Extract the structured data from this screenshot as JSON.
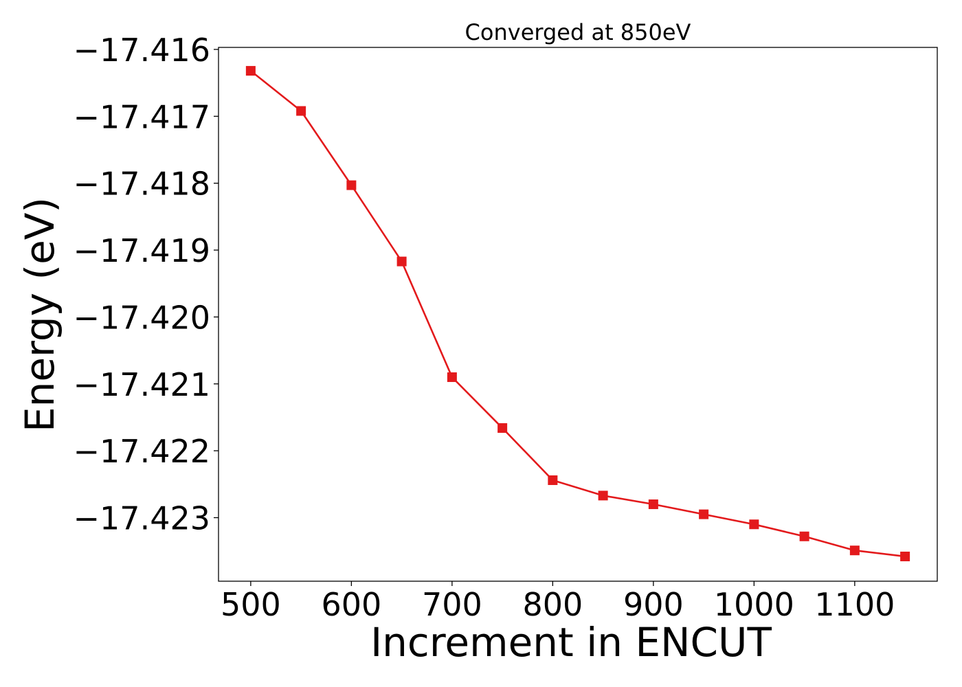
{
  "chart_data": {
    "type": "line",
    "title": "Converged at 850eV",
    "xlabel": "Increment in ENCUT",
    "ylabel": "Energy (eV)",
    "x": [
      500,
      550,
      600,
      650,
      700,
      750,
      800,
      850,
      900,
      950,
      1000,
      1050,
      1100,
      1150
    ],
    "series": [
      {
        "values": [
          -17.41632,
          -17.41692,
          -17.41803,
          -17.41917,
          -17.4209,
          -17.42166,
          -17.42244,
          -17.42267,
          -17.4228,
          -17.42295,
          -17.4231,
          -17.42328,
          -17.42349,
          -17.42358
        ],
        "color": "#e31a1c",
        "marker": "square"
      }
    ],
    "xlim": [
      468,
      1182
    ],
    "ylim": [
      -17.42395,
      -17.41597
    ],
    "xticks": [
      500,
      600,
      700,
      800,
      900,
      1000,
      1100
    ],
    "xtick_labels": [
      "500",
      "600",
      "700",
      "800",
      "900",
      "1000",
      "1100"
    ],
    "yticks": [
      -17.416,
      -17.417,
      -17.418,
      -17.419,
      -17.42,
      -17.421,
      -17.422,
      -17.423
    ],
    "ytick_labels": [
      "−17.416",
      "−17.417",
      "−17.418",
      "−17.419",
      "−17.420",
      "−17.421",
      "−17.422",
      "−17.423"
    ],
    "grid": false,
    "legend": false
  }
}
